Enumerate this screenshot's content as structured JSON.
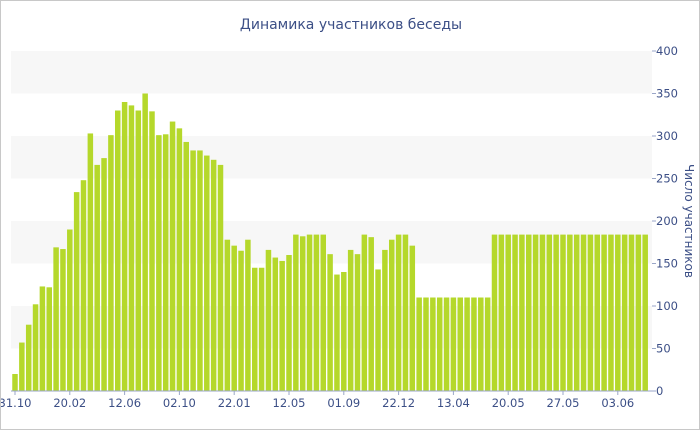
{
  "chart_data": {
    "type": "bar",
    "title": "Динамика участников беседы",
    "ylabel": "Число участников",
    "xlabel": "",
    "ylim": [
      0,
      400
    ],
    "y_ticks": [
      0,
      50,
      100,
      150,
      200,
      250,
      300,
      350,
      400
    ],
    "y_axis_side": "right",
    "grid": "alternating horizontal bands",
    "bar_color": "#b5d82b",
    "band_color": "#f7f7f7",
    "text_color": "#3c4f86",
    "x_tick_labels": [
      {
        "label": "31.10",
        "index": 0
      },
      {
        "label": "20.02",
        "index": 8
      },
      {
        "label": "12.06",
        "index": 16
      },
      {
        "label": "02.10",
        "index": 24
      },
      {
        "label": "22.01",
        "index": 32
      },
      {
        "label": "12.05",
        "index": 40
      },
      {
        "label": "01.09",
        "index": 48
      },
      {
        "label": "22.12",
        "index": 56
      },
      {
        "label": "13.04",
        "index": 64
      },
      {
        "label": "20.05",
        "index": 72
      },
      {
        "label": "27.05",
        "index": 80
      },
      {
        "label": "03.06",
        "index": 88
      }
    ],
    "values": [
      20,
      57,
      78,
      102,
      123,
      122,
      169,
      167,
      190,
      234,
      248,
      303,
      266,
      274,
      301,
      330,
      340,
      336,
      330,
      350,
      329,
      301,
      302,
      317,
      309,
      293,
      283,
      283,
      277,
      272,
      266,
      178,
      171,
      165,
      178,
      145,
      145,
      166,
      157,
      153,
      160,
      184,
      182,
      184,
      184,
      184,
      161,
      137,
      140,
      166,
      161,
      184,
      181,
      143,
      166,
      178,
      184,
      184,
      171,
      110,
      110,
      110,
      110,
      110,
      110,
      110,
      110,
      110,
      110,
      110,
      184,
      184,
      184,
      184,
      184,
      184,
      184,
      184,
      184,
      184,
      184,
      184,
      184,
      184,
      184,
      184,
      184,
      184,
      184,
      184,
      184,
      184,
      184
    ]
  }
}
